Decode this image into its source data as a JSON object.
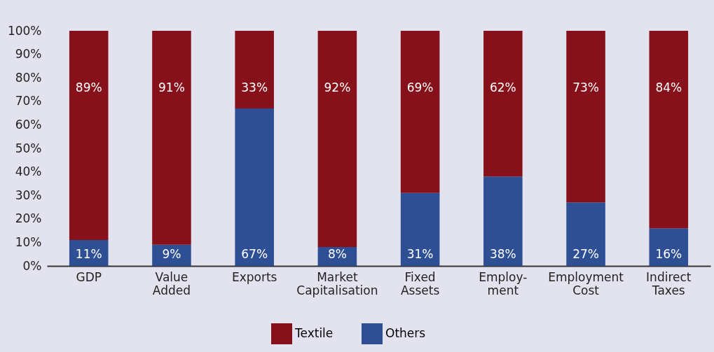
{
  "chart_data": {
    "type": "bar",
    "stacked": true,
    "legend": "bottom",
    "grid": false,
    "categories": [
      "GDP",
      "Value\nAdded",
      "Exports",
      "Market\nCapitalisation",
      "Fixed\nAssets",
      "Employ-\nment",
      "Employment\nCost",
      "Indirect\nTaxes"
    ],
    "series": [
      {
        "name": "Others",
        "color": "#2e4f93",
        "values": [
          11,
          9,
          67,
          8,
          31,
          38,
          27,
          16
        ],
        "value_labels": [
          "11%",
          "9%",
          "67%",
          "8%",
          "31%",
          "38%",
          "27%",
          "16%"
        ]
      },
      {
        "name": "Textile",
        "color": "#87111a",
        "values": [
          89,
          91,
          33,
          92,
          69,
          62,
          73,
          84
        ],
        "value_labels": [
          "89%",
          "91%",
          "33%",
          "92%",
          "69%",
          "62%",
          "73%",
          "84%"
        ]
      }
    ],
    "ylim": [
      0,
      100
    ],
    "yticks": [
      {
        "value": 0,
        "label": "0%"
      },
      {
        "value": 10,
        "label": "10%"
      },
      {
        "value": 20,
        "label": "20%"
      },
      {
        "value": 30,
        "label": "30%"
      },
      {
        "value": 40,
        "label": "40%"
      },
      {
        "value": 50,
        "label": "50%"
      },
      {
        "value": 60,
        "label": "60%"
      },
      {
        "value": 70,
        "label": "70%"
      },
      {
        "value": 80,
        "label": "80%"
      },
      {
        "value": 90,
        "label": "90%"
      },
      {
        "value": 100,
        "label": "100%"
      }
    ]
  }
}
